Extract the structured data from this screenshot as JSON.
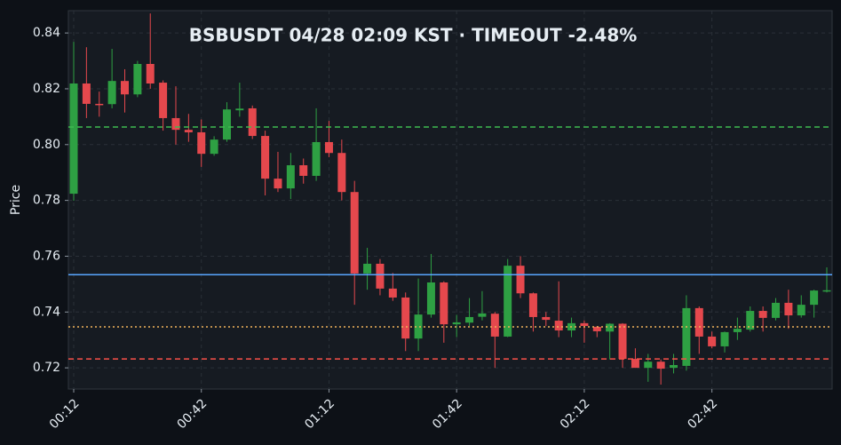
{
  "chart_data": {
    "type": "candlestick",
    "title": "BSBUSDT  04/28 02:09 KST  ·  TIMEOUT -2.48%",
    "y_label": "Price",
    "categories": [
      "00:12",
      null,
      null,
      null,
      null,
      null,
      null,
      null,
      null,
      null,
      "00:42",
      null,
      null,
      null,
      null,
      null,
      null,
      null,
      null,
      null,
      "01:12",
      null,
      null,
      null,
      null,
      null,
      null,
      null,
      null,
      null,
      "01:42",
      null,
      null,
      null,
      null,
      null,
      null,
      null,
      null,
      null,
      "02:12",
      null,
      null,
      null,
      null,
      null,
      null,
      null,
      null,
      null,
      "02:42",
      null,
      null,
      null,
      null,
      null,
      null,
      null,
      null,
      null
    ],
    "open": [
      0.7824,
      0.8219,
      0.8146,
      0.8145,
      0.8228,
      0.818,
      0.8289,
      0.8222,
      0.8095,
      0.8053,
      0.8044,
      0.7967,
      0.8018,
      0.8123,
      0.813,
      0.8031,
      0.7878,
      0.7843,
      0.7926,
      0.7888,
      0.8009,
      0.797,
      0.783,
      0.7538,
      0.7573,
      0.7484,
      0.7452,
      0.7305,
      0.7391,
      0.7506,
      0.7356,
      0.7362,
      0.7383,
      0.7394,
      0.7312,
      0.7566,
      0.7467,
      0.7382,
      0.7369,
      0.7334,
      0.736,
      0.7347,
      0.733,
      0.7358,
      0.7232,
      0.72,
      0.7222,
      0.72,
      0.7207,
      0.7414,
      0.7312,
      0.7277,
      0.7328,
      0.7337,
      0.7404,
      0.7379,
      0.7433,
      0.7388,
      0.7426,
      0.7475
    ],
    "high": [
      0.8368,
      0.8349,
      0.819,
      0.8343,
      0.827,
      0.83,
      0.847,
      0.823,
      0.8209,
      0.811,
      0.809,
      0.803,
      0.8152,
      0.8222,
      0.814,
      0.805,
      0.7974,
      0.797,
      0.795,
      0.813,
      0.8085,
      0.8018,
      0.787,
      0.763,
      0.759,
      0.754,
      0.747,
      0.752,
      0.7608,
      0.751,
      0.739,
      0.745,
      0.7475,
      0.74,
      0.759,
      0.76,
      0.747,
      0.74,
      0.751,
      0.738,
      0.737,
      0.735,
      0.736,
      0.736,
      0.727,
      0.725,
      0.723,
      0.725,
      0.746,
      0.742,
      0.733,
      0.733,
      0.738,
      0.742,
      0.742,
      0.745,
      0.748,
      0.746,
      0.748,
      0.756
    ],
    "low": [
      0.7799,
      0.8095,
      0.81,
      0.813,
      0.8115,
      0.817,
      0.82,
      0.805,
      0.8,
      0.801,
      0.792,
      0.796,
      0.801,
      0.81,
      0.802,
      0.7818,
      0.783,
      0.7805,
      0.786,
      0.787,
      0.7955,
      0.78,
      0.7426,
      0.748,
      0.746,
      0.744,
      0.726,
      0.726,
      0.738,
      0.729,
      0.731,
      0.735,
      0.737,
      0.72,
      0.731,
      0.745,
      0.733,
      0.735,
      0.731,
      0.731,
      0.729,
      0.731,
      0.723,
      0.72,
      0.72,
      0.715,
      0.714,
      0.718,
      0.719,
      0.725,
      0.727,
      0.7255,
      0.73,
      0.733,
      0.733,
      0.737,
      0.734,
      0.738,
      0.738,
      0.747
    ],
    "close": [
      0.8219,
      0.8146,
      0.8143,
      0.8228,
      0.818,
      0.8289,
      0.8219,
      0.8095,
      0.8053,
      0.8044,
      0.7967,
      0.8018,
      0.8126,
      0.8129,
      0.8031,
      0.7878,
      0.7843,
      0.7926,
      0.7888,
      0.8009,
      0.797,
      0.783,
      0.7538,
      0.7573,
      0.7484,
      0.7452,
      0.7305,
      0.7391,
      0.7506,
      0.7356,
      0.7363,
      0.7382,
      0.7395,
      0.7312,
      0.7566,
      0.7467,
      0.7382,
      0.7372,
      0.7334,
      0.736,
      0.735,
      0.7331,
      0.7358,
      0.7232,
      0.72,
      0.7222,
      0.7197,
      0.721,
      0.7414,
      0.7312,
      0.7277,
      0.7328,
      0.734,
      0.7404,
      0.7379,
      0.7433,
      0.7388,
      0.7426,
      0.7477,
      0.7478
    ],
    "up_color": "#2ea043",
    "down_color": "#e5484d",
    "lines": [
      {
        "value": 0.8063,
        "color": "#3fb950",
        "style": "dashed"
      },
      {
        "value": 0.7534,
        "color": "#58a6ff",
        "style": "solid"
      },
      {
        "value": 0.7347,
        "color": "#f0b35a",
        "style": "dotted"
      },
      {
        "value": 0.7232,
        "color": "#f85149",
        "style": "dashed"
      }
    ],
    "ylim": [
      0.7124,
      0.848
    ],
    "yticks": [
      0.72,
      0.74,
      0.76,
      0.78,
      {
        "value": 0.8,
        "label": "0.80"
      },
      0.82,
      0.84
    ],
    "grid": true
  }
}
